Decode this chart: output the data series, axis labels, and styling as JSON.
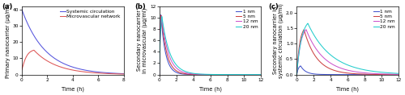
{
  "panel_a": {
    "label": "(a)",
    "xlabel": "Time (h)",
    "ylabel": "Primary nanocarrier (μg/ml)",
    "xlim": [
      0,
      8
    ],
    "ylim": [
      0,
      42
    ],
    "yticks": [
      0,
      10,
      20,
      30,
      40
    ],
    "xticks": [
      0,
      2,
      4,
      6,
      8
    ],
    "sys_color": "#5555dd",
    "micro_color": "#dd5555",
    "sys_label": "Systemic circulation",
    "micro_label": "Microvascular network",
    "sys_peak": 40.0,
    "sys_tau": 1.85,
    "micro_init": 3.0,
    "micro_init_tau": 0.12,
    "micro_dip": 2.5,
    "micro_peak2": 15.0,
    "micro_tpeak2": 0.95,
    "micro_tau2": 1.8
  },
  "panel_b": {
    "label": "(b)",
    "xlabel": "Time (h)",
    "ylabel": "Secondary nanocarrier\nin microvascular (μg/ml)",
    "xlim": [
      0,
      12
    ],
    "ylim": [
      0,
      12
    ],
    "yticks": [
      0,
      2,
      4,
      6,
      8,
      10,
      12
    ],
    "xticks": [
      0,
      2,
      4,
      6,
      8,
      10,
      12
    ],
    "lines": [
      {
        "label": "1 nm",
        "color": "#4455cc",
        "peak": 10.5,
        "tpeak": 0.18,
        "tau_rise": 0.08,
        "tau_fall": 0.55
      },
      {
        "label": "5 nm",
        "color": "#cc4444",
        "peak": 10.4,
        "tpeak": 0.22,
        "tau_rise": 0.1,
        "tau_fall": 0.65
      },
      {
        "label": "12 nm",
        "color": "#cc55cc",
        "peak": 10.3,
        "tpeak": 0.26,
        "tau_rise": 0.12,
        "tau_fall": 0.8
      },
      {
        "label": "20 nm",
        "color": "#22cccc",
        "peak": 10.2,
        "tpeak": 0.3,
        "tau_rise": 0.14,
        "tau_fall": 0.95
      }
    ]
  },
  "panel_c": {
    "label": "(c)",
    "xlabel": "Time (h)",
    "ylabel": "Secondary nanocarrier in\nsystemic circulation (μg/ml)",
    "xlim": [
      0,
      12
    ],
    "ylim": [
      0,
      2.2
    ],
    "yticks": [
      0.0,
      0.5,
      1.0,
      1.5,
      2.0
    ],
    "xticks": [
      0,
      2,
      4,
      6,
      8,
      10,
      12
    ],
    "lines": [
      {
        "label": "1 nm",
        "color": "#4455cc",
        "peak": 0.28,
        "tpeak": 0.45,
        "tau_rise": 0.2,
        "tau_fall": 0.6
      },
      {
        "label": "5 nm",
        "color": "#cc4444",
        "peak": 1.45,
        "tpeak": 0.85,
        "tau_rise": 0.35,
        "tau_fall": 1.5
      },
      {
        "label": "12 nm",
        "color": "#cc55cc",
        "peak": 1.45,
        "tpeak": 1.1,
        "tau_rise": 0.45,
        "tau_fall": 2.1
      },
      {
        "label": "20 nm",
        "color": "#22cccc",
        "peak": 1.65,
        "tpeak": 1.3,
        "tau_rise": 0.55,
        "tau_fall": 2.8
      }
    ]
  },
  "fig_background": "#ffffff",
  "axes_background": "#ffffff",
  "legend_fontsize": 4.2,
  "label_fontsize": 4.8,
  "tick_fontsize": 4.2,
  "linewidth": 0.75
}
